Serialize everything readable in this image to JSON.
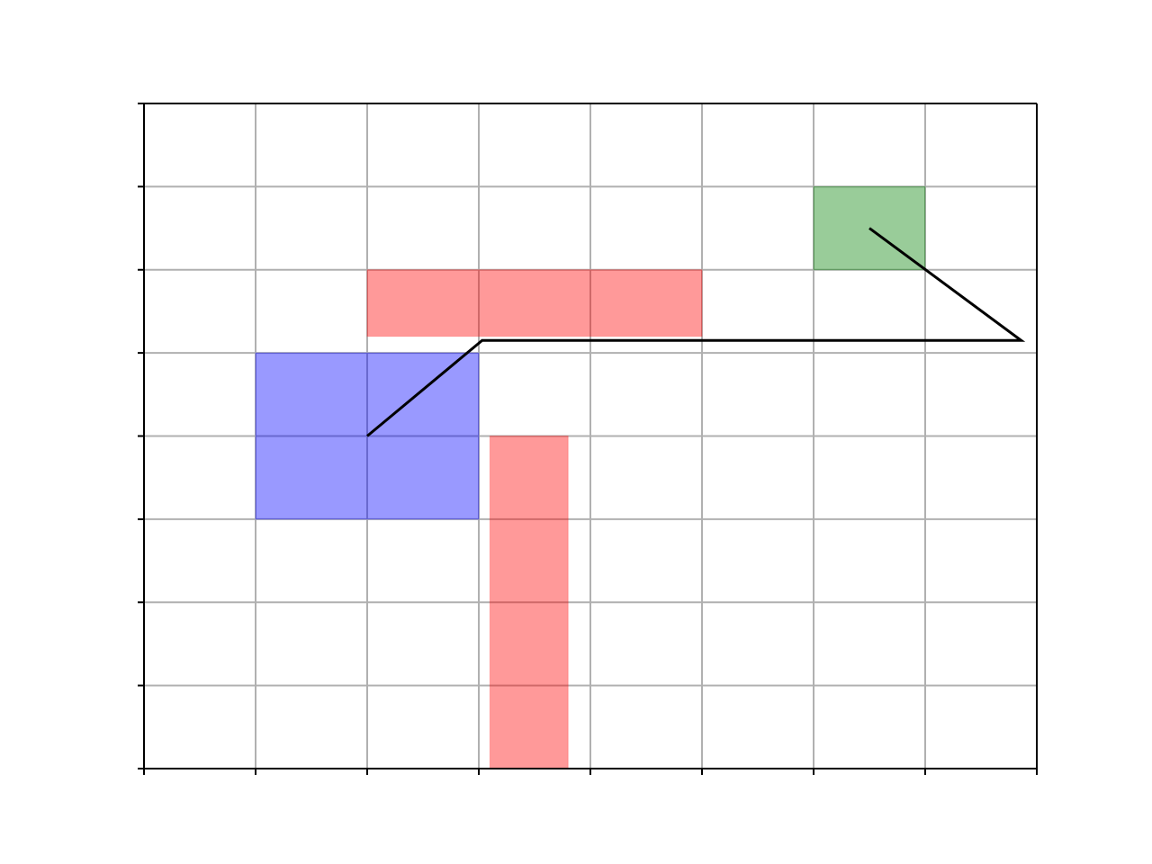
{
  "chart_data": {
    "type": "scatter",
    "title": "",
    "xlabel": "",
    "ylabel": "",
    "xlim": [
      0,
      8
    ],
    "ylim": [
      0,
      8
    ],
    "xticks": [
      0,
      1,
      2,
      3,
      4,
      5,
      6,
      7,
      8
    ],
    "yticks": [
      0,
      1,
      2,
      3,
      4,
      5,
      6,
      7,
      8
    ],
    "tick_labels_shown": false,
    "grid": true,
    "legend": "none",
    "rectangles": [
      {
        "name": "blue-rectangle",
        "x": 1,
        "y": 3,
        "width": 2,
        "height": 2,
        "color": "#0000ff",
        "alpha": 0.4
      },
      {
        "name": "red-horizontal-rectangle",
        "x": 2,
        "y": 5.2,
        "width": 3,
        "height": 0.8,
        "color": "#ff0000",
        "alpha": 0.4
      },
      {
        "name": "red-vertical-rectangle",
        "x": 3.1,
        "y": 0,
        "width": 0.7,
        "height": 4,
        "color": "#ff0000",
        "alpha": 0.4
      },
      {
        "name": "green-rectangle",
        "x": 6,
        "y": 6,
        "width": 1,
        "height": 1,
        "color": "#008000",
        "alpha": 0.4
      }
    ],
    "path": {
      "color": "#000000",
      "x": [
        2,
        3.03,
        7.86,
        6.5
      ],
      "y": [
        4,
        5.15,
        5.15,
        6.5
      ]
    }
  }
}
